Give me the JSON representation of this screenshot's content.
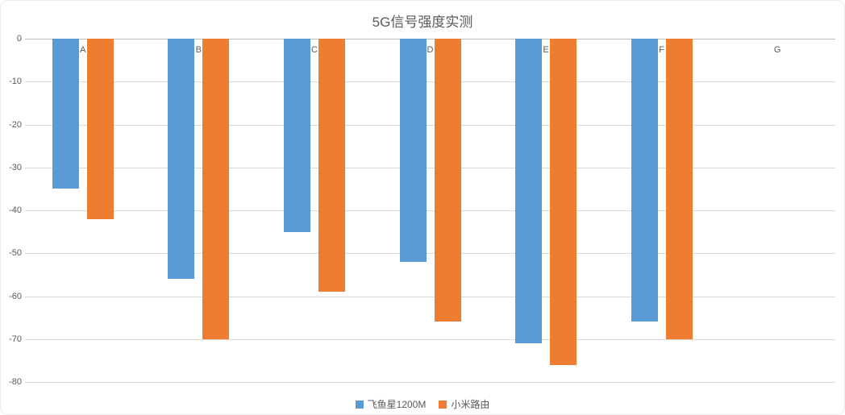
{
  "chart": {
    "title": "5G信号强度实测",
    "legend": [
      {
        "label": "飞鱼星1200M",
        "color": "#5B9BD5"
      },
      {
        "label": "小米路由",
        "color": "#ED7D31"
      }
    ]
  },
  "chart_data": {
    "type": "bar",
    "title": "5G信号强度实测",
    "categories": [
      "A",
      "B",
      "C",
      "D",
      "E",
      "F",
      "G"
    ],
    "series": [
      {
        "name": "飞鱼星1200M",
        "color": "#5B9BD5",
        "values": [
          -35,
          -56,
          -45,
          -52,
          -71,
          -66,
          null
        ]
      },
      {
        "name": "小米路由",
        "color": "#ED7D31",
        "values": [
          -42,
          -70,
          -59,
          -66,
          -76,
          -70,
          null
        ]
      }
    ],
    "xlabel": "",
    "ylabel": "",
    "ylim": [
      -80,
      0
    ],
    "yticks": [
      0,
      -10,
      -20,
      -30,
      -40,
      -50,
      -60,
      -70,
      -80
    ],
    "grid": true,
    "legend_position": "bottom",
    "colors": {
      "title_text": "#595959",
      "axis_text": "#595959",
      "gridline": "#D9D9D9",
      "zero_axis_line": "#BFBFBF",
      "background": "#FFFFFF"
    }
  }
}
